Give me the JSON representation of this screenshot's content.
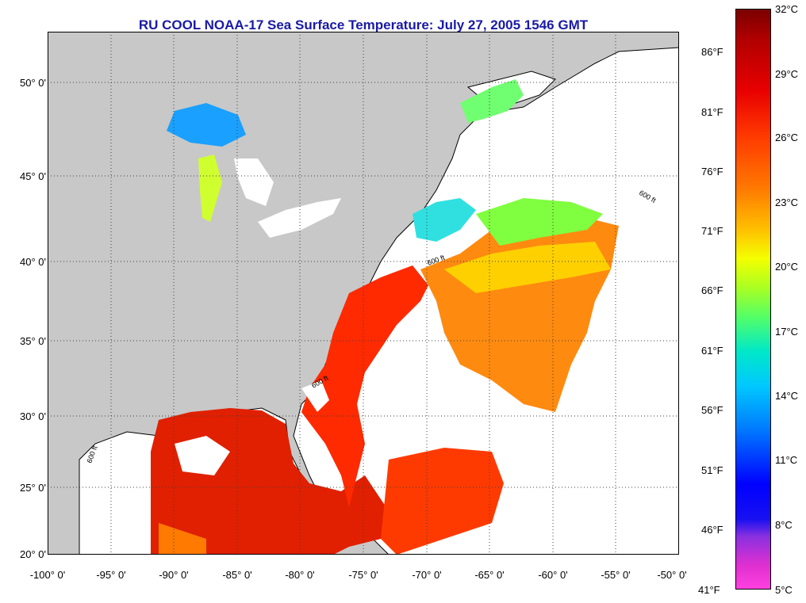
{
  "title": "RU COOL  NOAA-17  Sea Surface Temperature:  July 27, 2005 1546 GMT",
  "map": {
    "lat_labels": [
      "50° 0'",
      "45° 0'",
      "40° 0'",
      "35° 0'",
      "30° 0'",
      "25° 0'",
      "20° 0'"
    ],
    "lon_labels": [
      "-100° 0'",
      "-95° 0'",
      "-90° 0'",
      "-85° 0'",
      "-80° 0'",
      "-75° 0'",
      "-70° 0'",
      "-65° 0'",
      "-60° 0'",
      "-55° 0'",
      "-50° 0'"
    ],
    "contour_labels": [
      "600 ft",
      "600 ft",
      "600 ft",
      "600 ft"
    ],
    "land_color": "#c8c8c8",
    "no_data_color": "#ffffff",
    "graticule": "dotted"
  },
  "colorbar": {
    "celsius_labels": [
      "32°C",
      "29°C",
      "26°C",
      "23°C",
      "20°C",
      "17°C",
      "14°C",
      "11°C",
      "8°C",
      "5°C"
    ],
    "fahrenheit_labels": [
      "86°F",
      "81°F",
      "76°F",
      "71°F",
      "66°F",
      "61°F",
      "56°F",
      "51°F",
      "46°F",
      "41°F"
    ],
    "color_stops": [
      "#7a0000",
      "#e80000",
      "#ff7a00",
      "#f4ff00",
      "#55ff66",
      "#00c8ff",
      "#0000ff",
      "#8a30e0",
      "#ff40e0"
    ]
  }
}
